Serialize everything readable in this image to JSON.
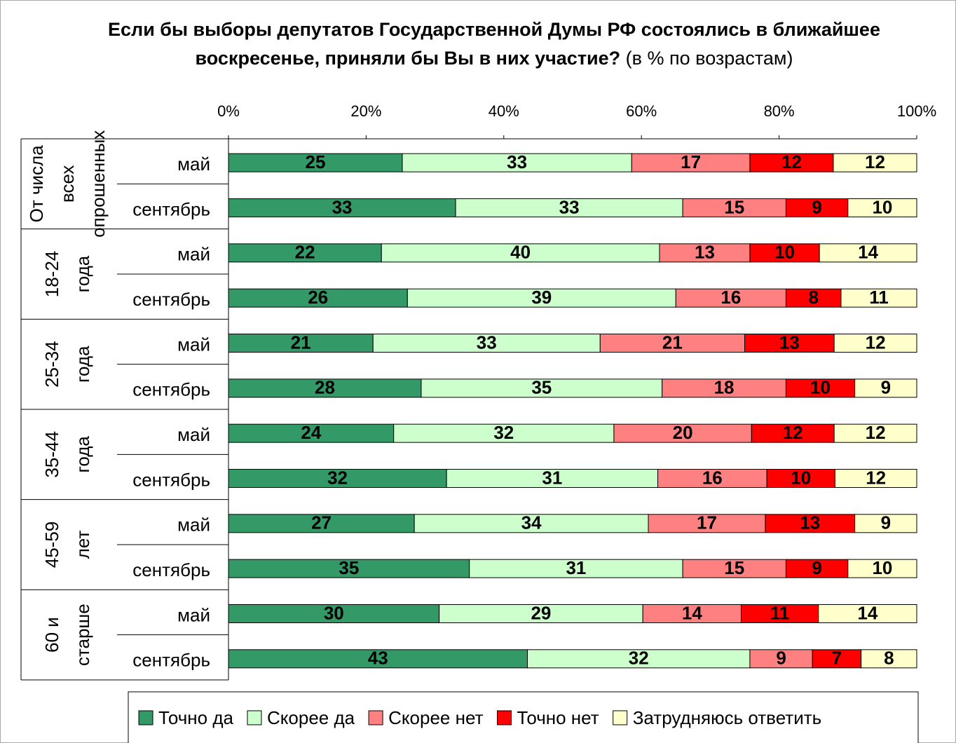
{
  "chart_data": {
    "type": "stacked_percent_bar",
    "title": "Если бы выборы депутатов Государственной Думы РФ состоялись в ближайшее воскресенье, приняли бы Вы в них участие?",
    "subtitle": "(в % по возрастам)",
    "groups": [
      [
        "От числа",
        "всех",
        "опрошенных"
      ],
      [
        "18-24",
        "года"
      ],
      [
        "25-34",
        "года"
      ],
      [
        "35-44",
        "года"
      ],
      [
        "45-59",
        "лет"
      ],
      [
        "60 и",
        "старше"
      ]
    ],
    "categories": [
      "май",
      "сентябрь",
      "май",
      "сентябрь",
      "май",
      "сентябрь",
      "май",
      "сентябрь",
      "май",
      "сентябрь",
      "май",
      "сентябрь"
    ],
    "series": [
      {
        "name": "Точно да",
        "color": "#339966",
        "values": [
          25,
          33,
          22,
          26,
          21,
          28,
          24,
          32,
          27,
          35,
          30,
          43
        ]
      },
      {
        "name": "Скорее да",
        "color": "#ccffcc",
        "values": [
          33,
          33,
          40,
          39,
          33,
          35,
          32,
          31,
          34,
          31,
          29,
          32
        ]
      },
      {
        "name": "Скорее нет",
        "color": "#ff8080",
        "values": [
          17,
          15,
          13,
          16,
          21,
          18,
          20,
          16,
          17,
          15,
          14,
          9
        ]
      },
      {
        "name": "Точно нет",
        "color": "#ff0000",
        "values": [
          12,
          9,
          10,
          8,
          13,
          10,
          12,
          10,
          13,
          9,
          11,
          7
        ]
      },
      {
        "name": "Затрудняюсь ответить",
        "color": "#ffffcc",
        "values": [
          12,
          10,
          14,
          11,
          12,
          9,
          12,
          12,
          9,
          10,
          14,
          8
        ]
      }
    ],
    "xlim": [
      0,
      100
    ],
    "xticks": [
      {
        "value": 0,
        "label": "0%"
      },
      {
        "value": 20,
        "label": "20%"
      },
      {
        "value": 40,
        "label": "40%"
      },
      {
        "value": 60,
        "label": "60%"
      },
      {
        "value": 80,
        "label": "80%"
      },
      {
        "value": 100,
        "label": "100%"
      }
    ],
    "legend": "bottom"
  }
}
